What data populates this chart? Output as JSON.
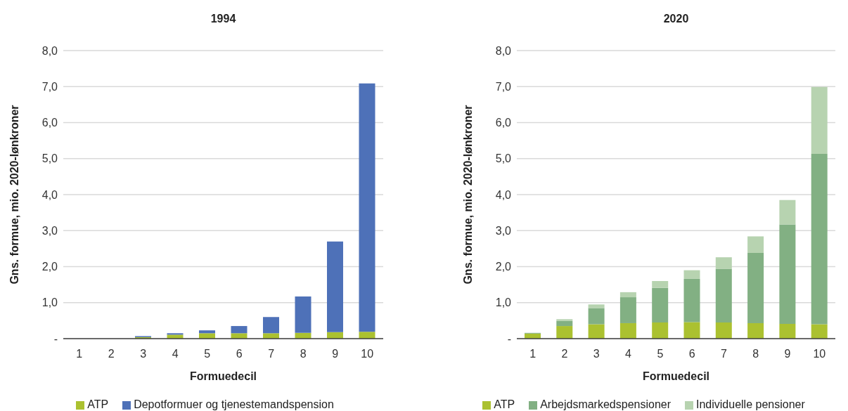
{
  "chart_data": [
    {
      "type": "bar",
      "title": "1994",
      "xlabel": "Formuedecil",
      "ylabel": "Gns. formue, mio. 2020-lønkroner",
      "categories": [
        "1",
        "2",
        "3",
        "4",
        "5",
        "6",
        "7",
        "8",
        "9",
        "10"
      ],
      "stacked": true,
      "series": [
        {
          "name": "ATP",
          "color": "#abc130",
          "values": [
            0,
            0,
            0.04,
            0.11,
            0.15,
            0.15,
            0.15,
            0.16,
            0.18,
            0.19
          ]
        },
        {
          "name": "Depotformuer og tjenestemandspension",
          "color": "#4e71b8",
          "values": [
            0,
            0,
            0.03,
            0.04,
            0.08,
            0.2,
            0.45,
            1.01,
            2.52,
            6.9
          ]
        }
      ],
      "ylim": [
        0,
        8
      ],
      "yticks": [
        {
          "value": 0,
          "label": "-"
        },
        {
          "value": 1,
          "label": "1,0"
        },
        {
          "value": 2,
          "label": "2,0"
        },
        {
          "value": 3,
          "label": "3,0"
        },
        {
          "value": 4,
          "label": "4,0"
        },
        {
          "value": 5,
          "label": "5,0"
        },
        {
          "value": 6,
          "label": "6,0"
        },
        {
          "value": 7,
          "label": "7,0"
        },
        {
          "value": 8,
          "label": "8,0"
        }
      ],
      "grid": "y",
      "legend": "bottom"
    },
    {
      "type": "bar",
      "title": "2020",
      "xlabel": "Formuedecil",
      "ylabel": "Gns. formue, mio. 2020-lønkroner",
      "categories": [
        "1",
        "2",
        "3",
        "4",
        "5",
        "6",
        "7",
        "8",
        "9",
        "10"
      ],
      "stacked": true,
      "series": [
        {
          "name": "ATP",
          "color": "#abc130",
          "values": [
            0.14,
            0.35,
            0.4,
            0.43,
            0.45,
            0.46,
            0.45,
            0.43,
            0.41,
            0.4
          ]
        },
        {
          "name": "Arbejdsmarkedspensioner",
          "color": "#82b083",
          "values": [
            0.02,
            0.14,
            0.45,
            0.72,
            0.96,
            1.2,
            1.49,
            1.95,
            2.76,
            4.73
          ]
        },
        {
          "name": "Individuelle pensioner",
          "color": "#b7d3b0",
          "values": [
            0,
            0.05,
            0.1,
            0.14,
            0.19,
            0.24,
            0.32,
            0.46,
            0.68,
            1.86
          ]
        }
      ],
      "ylim": [
        0,
        8
      ],
      "yticks": [
        {
          "value": 0,
          "label": "-"
        },
        {
          "value": 1,
          "label": "1,0"
        },
        {
          "value": 2,
          "label": "2,0"
        },
        {
          "value": 3,
          "label": "3,0"
        },
        {
          "value": 4,
          "label": "4,0"
        },
        {
          "value": 5,
          "label": "5,0"
        },
        {
          "value": 6,
          "label": "6,0"
        },
        {
          "value": 7,
          "label": "7,0"
        },
        {
          "value": 8,
          "label": "8,0"
        }
      ],
      "grid": "y",
      "legend": "bottom"
    }
  ]
}
